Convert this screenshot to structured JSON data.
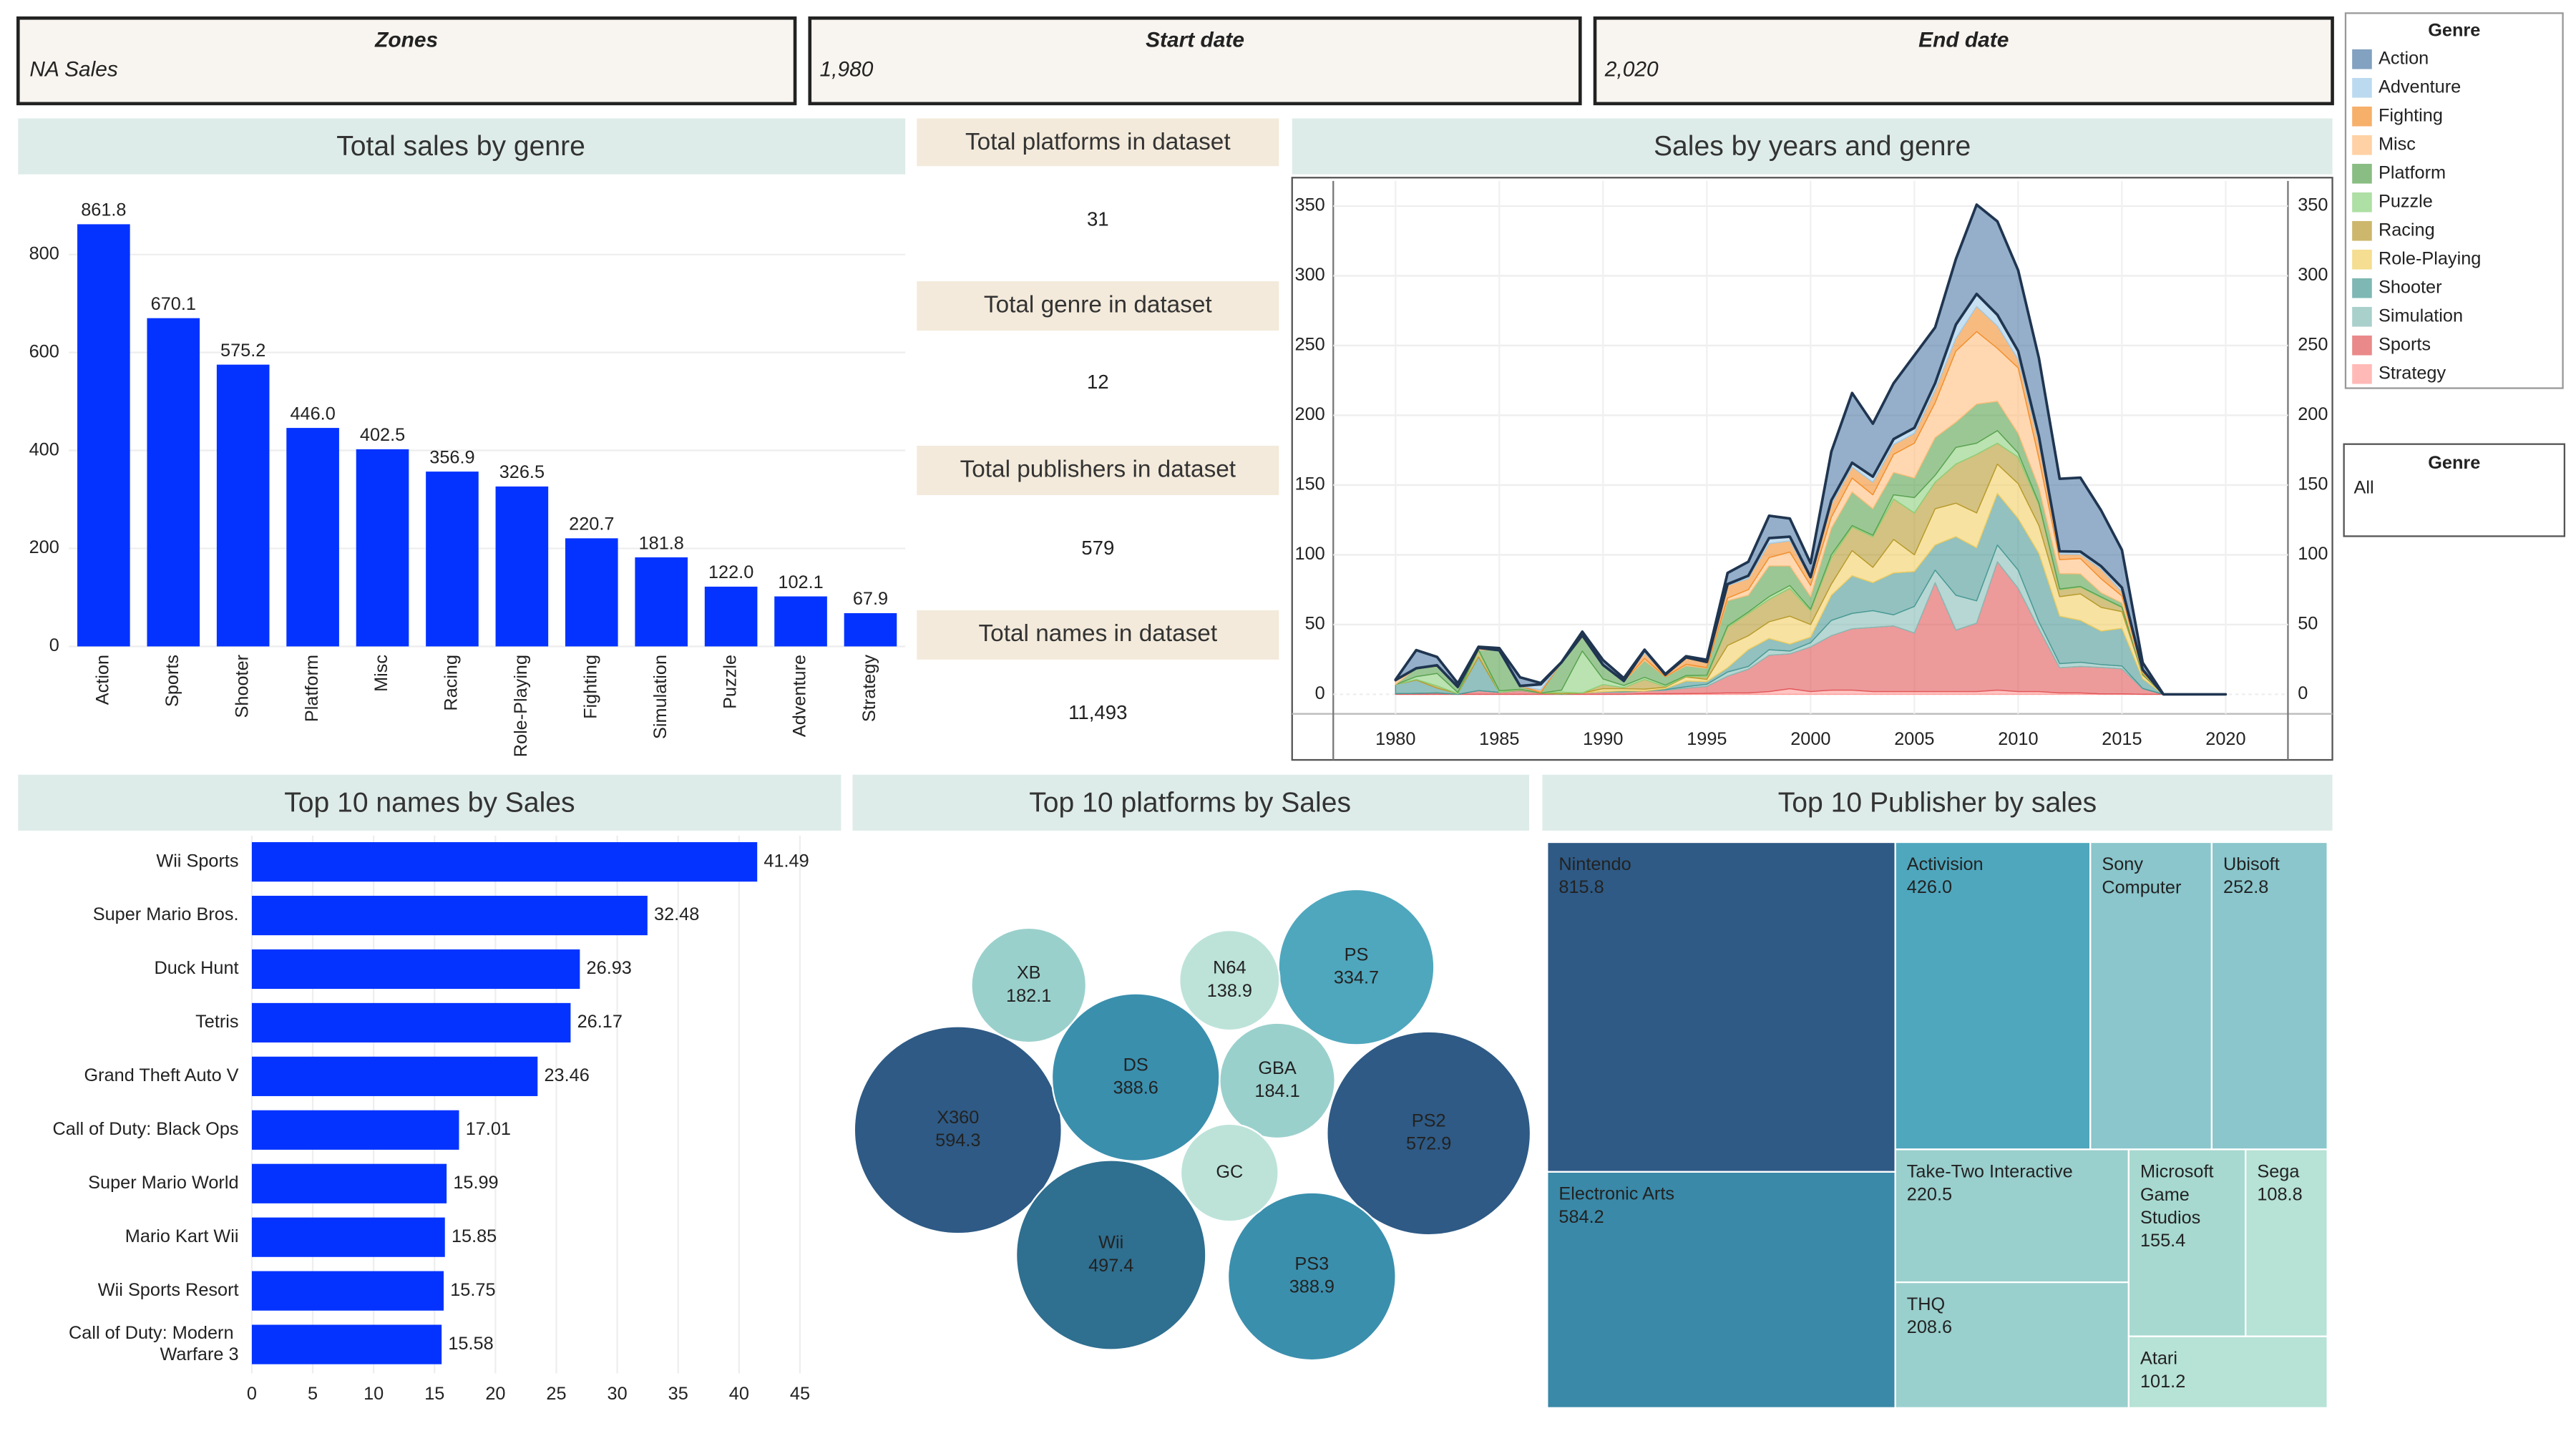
{
  "filters": [
    {
      "title": "Zones",
      "value": "NA Sales"
    },
    {
      "title": "Start date",
      "value": "1,980"
    },
    {
      "title": "End date",
      "value": "2,020"
    },
    {
      "title": "Genre",
      "value": "All"
    }
  ],
  "kpis": [
    {
      "title": "Total platforms in dataset",
      "value": "31"
    },
    {
      "title": "Total genre in dataset",
      "value": "12"
    },
    {
      "title": "Total publishers in dataset",
      "value": "579"
    },
    {
      "title": "Total names in dataset",
      "value": "11,493"
    }
  ],
  "chart_data": [
    {
      "type": "bar",
      "title": "Total sales by genre",
      "categories": [
        "Action",
        "Sports",
        "Shooter",
        "Platform",
        "Misc",
        "Racing",
        "Role-Playing",
        "Fighting",
        "Simulation",
        "Puzzle",
        "Adventure",
        "Strategy"
      ],
      "values": [
        861.8,
        670.1,
        575.2,
        446,
        402.5,
        356.9,
        326.5,
        220.7,
        181.8,
        122,
        102.1,
        67.9
      ],
      "value_labels": [
        "861.8",
        "670.1",
        "575.2",
        "446.0",
        "402.5",
        "356.9",
        "326.5",
        "220.7",
        "181.8",
        "122.0",
        "102.1",
        "67.9"
      ],
      "color": "#0433ff",
      "ylim": [
        0,
        920
      ],
      "yticks": [
        0,
        200,
        400,
        600,
        800
      ],
      "grid": true
    },
    {
      "type": "area",
      "stacked": true,
      "title": "Sales by years and genre",
      "legend_title": "Genre",
      "legend": "right",
      "x": [
        1980,
        1981,
        1982,
        1983,
        1984,
        1985,
        1986,
        1987,
        1988,
        1989,
        1990,
        1991,
        1992,
        1993,
        1994,
        1995,
        1996,
        1997,
        1998,
        1999,
        2000,
        2001,
        2002,
        2003,
        2004,
        2005,
        2006,
        2007,
        2008,
        2009,
        2010,
        2011,
        2012,
        2013,
        2014,
        2015,
        2016,
        2017,
        2018,
        2019,
        2020
      ],
      "series": [
        {
          "name": "Action",
          "color": "#4e79a7",
          "values": [
            0.3,
            13,
            6,
            2.6,
            0.8,
            1.5,
            6.2,
            0.9,
            0.1,
            2.6,
            3.5,
            2,
            0.3,
            0.4,
            0.8,
            1.5,
            8,
            10,
            16,
            13,
            10,
            35,
            50,
            38,
            40,
            52,
            40,
            47,
            64,
            67,
            58,
            56,
            52,
            53,
            40,
            27,
            5,
            0,
            0,
            0,
            0
          ]
        },
        {
          "name": "Adventure",
          "color": "#a0cbe8",
          "values": [
            0,
            0,
            0,
            0,
            0,
            0,
            0,
            4,
            0,
            0,
            0,
            0,
            2,
            0,
            0,
            0.5,
            1,
            2,
            4,
            3,
            1,
            3,
            3,
            4,
            4,
            4,
            5,
            10,
            9,
            8,
            6,
            5,
            2,
            2,
            2,
            3,
            0.8,
            0,
            0,
            0,
            0
          ]
        },
        {
          "name": "Fighting",
          "color": "#f28e2b",
          "values": [
            0.7,
            0,
            0,
            0,
            0,
            0,
            0,
            2,
            0,
            0,
            0,
            0.3,
            4,
            1.5,
            5,
            3.5,
            9,
            8,
            10,
            8,
            5,
            9,
            8,
            9,
            7,
            7,
            9,
            9,
            18,
            16,
            6,
            11,
            4,
            3,
            7,
            3,
            1,
            0,
            0,
            0,
            0
          ]
        },
        {
          "name": "Misc",
          "color": "#ffbe7d",
          "values": [
            2.5,
            0,
            0.8,
            0,
            1.4,
            0,
            0,
            0,
            0,
            1.3,
            0,
            0,
            1.5,
            0,
            1,
            0.5,
            2,
            4,
            6,
            10,
            8,
            8,
            10,
            10,
            13,
            25,
            25,
            51,
            52,
            38,
            47,
            21,
            10,
            11,
            10,
            5,
            0.6,
            0,
            0,
            0,
            0
          ]
        },
        {
          "name": "Platform",
          "color": "#59a14f",
          "values": [
            0,
            6,
            5,
            4,
            0,
            29,
            2.4,
            0.3,
            20,
            10,
            10,
            3,
            12,
            6,
            7,
            5,
            18,
            12,
            22,
            14,
            9,
            19,
            24,
            19,
            16,
            14,
            27,
            18,
            28,
            21,
            14,
            11,
            11,
            9,
            3,
            3,
            1,
            0,
            0,
            0,
            0
          ]
        },
        {
          "name": "Puzzle",
          "color": "#8cd17d",
          "values": [
            0,
            2,
            9,
            0.8,
            0.7,
            1.2,
            0,
            0,
            1.5,
            30,
            4,
            1.5,
            1.5,
            1,
            0.5,
            1,
            1,
            1,
            2,
            2,
            1,
            2,
            1,
            1,
            3,
            11,
            5,
            12,
            8,
            9,
            3,
            1,
            0.5,
            0.3,
            0.5,
            0.2,
            0,
            0,
            0,
            0,
            0
          ]
        },
        {
          "name": "Racing",
          "color": "#b6992d",
          "values": [
            0,
            0.5,
            1.5,
            0,
            4.5,
            0,
            0,
            0,
            1.2,
            0,
            3,
            0.8,
            7,
            0.5,
            0.5,
            2,
            13,
            16,
            16,
            20,
            10,
            19,
            17,
            22,
            29,
            30,
            19,
            28,
            42,
            15,
            19,
            15,
            5,
            5,
            7,
            3,
            0.5,
            0,
            0,
            0,
            0
          ]
        },
        {
          "name": "Role-Playing",
          "color": "#f1ce63",
          "values": [
            0,
            0,
            0,
            0,
            0,
            0,
            0.5,
            0,
            0,
            0,
            2,
            1.5,
            1.3,
            1,
            3,
            1.5,
            16,
            10,
            12,
            20,
            9,
            8,
            18,
            11,
            24,
            12,
            26,
            24,
            25,
            21,
            25,
            20,
            14,
            19,
            17,
            12,
            2.6,
            0,
            0,
            0,
            0
          ]
        },
        {
          "name": "Shooter",
          "color": "#499894",
          "values": [
            6.5,
            9.5,
            3.5,
            0.5,
            24,
            0,
            0.3,
            0,
            0.3,
            0,
            0,
            0.5,
            0,
            0.7,
            4,
            2,
            3,
            12,
            8,
            5,
            4,
            18,
            27,
            20,
            30,
            25,
            18,
            42,
            38,
            37,
            37,
            49,
            34,
            30,
            24,
            27,
            7,
            0,
            0,
            0,
            0
          ]
        },
        {
          "name": "Simulation",
          "color": "#86bcb6",
          "values": [
            0,
            0,
            0,
            0,
            0,
            0,
            0,
            0,
            0,
            0,
            0.5,
            0.5,
            0,
            0.5,
            1,
            1.5,
            3,
            2,
            4,
            2,
            3,
            11,
            11,
            12,
            8,
            19,
            9,
            25,
            16,
            12,
            13,
            5,
            3,
            3,
            2,
            2,
            0.2,
            0,
            0,
            0,
            0
          ]
        },
        {
          "name": "Sports",
          "color": "#e15759",
          "values": [
            0.5,
            0.7,
            1,
            0,
            2.7,
            1.4,
            2.8,
            0.9,
            0,
            1,
            1.5,
            1.5,
            2,
            2.5,
            4,
            5,
            12,
            17,
            26,
            25,
            32,
            39,
            44,
            46,
            47,
            42,
            78,
            44,
            49,
            92,
            74,
            45,
            18,
            19,
            19,
            18,
            4,
            0,
            0,
            0,
            0
          ]
        },
        {
          "name": "Strategy",
          "color": "#ff9d9a",
          "values": [
            0,
            0,
            0,
            0,
            0,
            0,
            0,
            0,
            0,
            0,
            0,
            0,
            0.4,
            0.4,
            0.5,
            0.7,
            1,
            1,
            2,
            4,
            2,
            3,
            3,
            2,
            2,
            2,
            2,
            2,
            2,
            3,
            2,
            2,
            1,
            1,
            0.3,
            0.3,
            0,
            0,
            0,
            0,
            0
          ]
        }
      ],
      "xlim": [
        1977,
        2023
      ],
      "xticks": [
        1980,
        1985,
        1990,
        1995,
        2000,
        2005,
        2010,
        2015,
        2020
      ],
      "ylim": [
        -14,
        368
      ],
      "yticks": [
        0,
        50,
        100,
        150,
        200,
        250,
        300,
        350
      ],
      "grid": true
    },
    {
      "type": "bar",
      "orientation": "horizontal",
      "title": "Top 10 names by Sales",
      "categories": [
        "Wii Sports",
        "Super Mario Bros.",
        "Duck Hunt",
        "Tetris",
        "Grand Theft Auto V",
        "Call of Duty: Black Ops",
        "Super Mario World",
        "Mario Kart Wii",
        "Wii Sports Resort",
        "Call of Duty: Modern Warfare 3"
      ],
      "values": [
        41.49,
        32.48,
        26.93,
        26.17,
        23.46,
        17.01,
        15.99,
        15.85,
        15.75,
        15.58
      ],
      "color": "#0433ff",
      "xlim": [
        0,
        48
      ],
      "xticks": [
        0,
        5,
        10,
        15,
        20,
        25,
        30,
        35,
        40,
        45
      ],
      "grid": true
    },
    {
      "type": "bubble",
      "title": "Top 10 platforms by Sales",
      "categories": [
        "X360",
        "PS2",
        "Wii",
        "PS3",
        "DS",
        "PS",
        "GBA",
        "XB",
        "N64",
        "GC"
      ],
      "values": [
        594.3,
        572.9,
        497.4,
        388.9,
        388.6,
        334.7,
        184.1,
        182.1,
        138.9,
        131.9
      ],
      "value_labels": [
        "594.3",
        "572.9",
        "497.4",
        "388.9",
        "388.6",
        "334.7",
        "184.1",
        "182.1",
        "138.9",
        null
      ],
      "colors": [
        "#2e5a85",
        "#2e5a85",
        "#2f6f90",
        "#3a8fad",
        "#3a8fad",
        "#4fa7bd",
        "#9ad0cc",
        "#9ad0cc",
        "#bde3d9",
        "#bde3d9"
      ]
    },
    {
      "type": "treemap",
      "title": "Top 10 Publisher by sales",
      "categories": [
        "Nintendo",
        "Electronic Arts",
        "Activision",
        "Sony Computer",
        "Ubisoft",
        "Take-Two Interactive",
        "THQ",
        "Microsoft Game Studios",
        "Sega",
        "Atari"
      ],
      "values": [
        815.8,
        584.2,
        426,
        265.2,
        252.8,
        220.5,
        208.6,
        155.4,
        108.8,
        101.2
      ],
      "value_labels": [
        "815.8",
        "584.2",
        "426.0",
        null,
        "252.8",
        "220.5",
        "208.6",
        "155.4",
        "108.8",
        "101.2"
      ],
      "colors": [
        "#2e5a85",
        "#3a89a8",
        "#4fa7bd",
        "#8ac6cc",
        "#8ac6cc",
        "#99cfcd",
        "#99cfcd",
        "#a7d9d0",
        "#b7e2d6",
        "#b7e2d6"
      ]
    }
  ]
}
